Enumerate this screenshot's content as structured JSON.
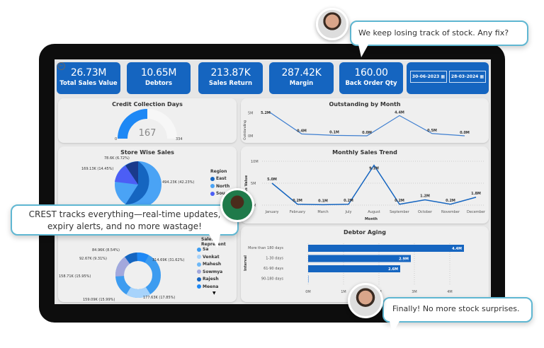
{
  "kpis": [
    {
      "value": "26.73M",
      "label": "Total Sales Value"
    },
    {
      "value": "10.65M",
      "label": "Debtors"
    },
    {
      "value": "213.87K",
      "label": "Sales Return"
    },
    {
      "value": "287.42K",
      "label": "Margin"
    },
    {
      "value": "160.00",
      "label": "Back Order Qty"
    }
  ],
  "dates": {
    "start": "30-06-2023",
    "end": "28-03-2024",
    "icon": "calendar-icon"
  },
  "credit": {
    "title": "Credit Collection Days",
    "value": "167",
    "min": "0",
    "max": "334",
    "fraction": 0.5
  },
  "outstanding": {
    "title": "Outstanding by Month",
    "ylabel": "Outstanding",
    "yticks": [
      "5M",
      "0M"
    ],
    "labels": [
      "5.2M",
      "0.4M",
      "0.1M",
      "0.0M",
      "4.4M",
      "0.5M",
      "0.0M"
    ],
    "values": [
      5.2,
      0.4,
      0.1,
      0.0,
      4.4,
      0.5,
      0.0
    ]
  },
  "store": {
    "title": "Store Wise Sales",
    "labels": [
      "494.23K (42.23%)",
      "169.13K (14.45%)",
      "78.6K (6.72%)"
    ],
    "legend_title": "Region",
    "legend": [
      "East",
      "North",
      "Sou"
    ],
    "colors": [
      "#1565c0",
      "#4aa3f5",
      "#4c5ef5",
      "#1a3a8c"
    ]
  },
  "salesrep": {
    "legend_title": "Sales Represent",
    "labels": [
      "314.69K (31.62%)",
      "177.63K (17.85%)",
      "159.09K (15.99%)",
      "158.71K (15.95%)",
      "92.67K (9.31%)",
      "84.96K (8.54%)"
    ],
    "values": [
      31.62,
      17.85,
      15.99,
      15.95,
      9.31,
      8.54
    ],
    "legend": [
      "Sa",
      "Venkat",
      "Mahesh",
      "Sowmya",
      "Rajesh",
      "Meena"
    ],
    "colors": [
      "#3d9cf0",
      "#a7d3fb",
      "#6db8f7",
      "#a3a8dc",
      "#1565c0",
      "#1e88f5"
    ]
  },
  "trend": {
    "title": "Monthly Sales Trend",
    "xlabel": "Month",
    "ylabel": "Sales Value",
    "yticks": [
      "10M",
      "5M",
      "0M"
    ],
    "months": [
      "January",
      "February",
      "March",
      "July",
      "August",
      "September",
      "October",
      "November",
      "December"
    ],
    "values": [
      5.0,
      0.2,
      0.1,
      0.2,
      9.1,
      0.2,
      1.2,
      0.2,
      1.8
    ],
    "labels": [
      "5.0M",
      "0.2M",
      "0.1M",
      "0.2M",
      "9.1M",
      "0.2M",
      "1.2M",
      "0.2M",
      "1.8M"
    ]
  },
  "aging": {
    "title": "Debtor Aging",
    "ylabel": "Interval",
    "categories": [
      "More than 180 days",
      "1-30 days",
      "61-90 days",
      "90-180 days"
    ],
    "values": [
      4.4,
      2.9,
      2.6,
      0.02
    ],
    "labels": [
      "4.4M",
      "2.9M",
      "2.6M",
      ""
    ],
    "xticks": [
      "0M",
      "1M",
      "2M",
      "3M",
      "4M"
    ]
  },
  "bubbles": {
    "top": "We keep losing track of stock. Any fix?",
    "left": "CREST tracks everything—real-time updates, expiry alerts, and no more wastage!",
    "bottom": "Finally! No more stock surprises."
  },
  "accent": "#1565c0"
}
